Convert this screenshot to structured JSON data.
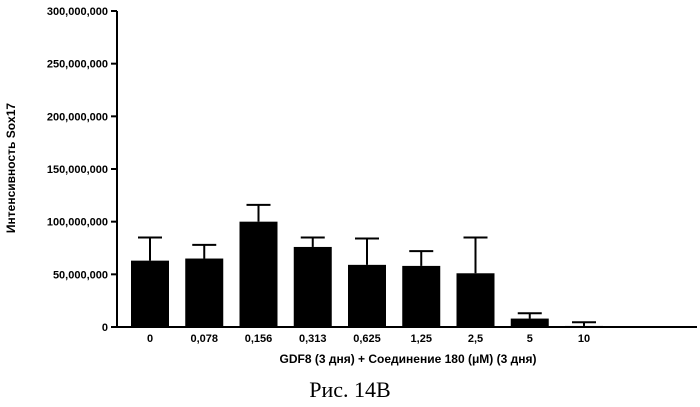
{
  "chart_data": {
    "type": "bar",
    "categories": [
      "0",
      "0,078",
      "0,156",
      "0,313",
      "0,625",
      "1,25",
      "2,5",
      "5",
      "10"
    ],
    "values": [
      63000000,
      65000000,
      100000000,
      76000000,
      59000000,
      58000000,
      51000000,
      8000000,
      1000000
    ],
    "error_upper": [
      85000000,
      78000000,
      116000000,
      85000000,
      84000000,
      72000000,
      85000000,
      13000000,
      4500000
    ],
    "ylim": [
      0,
      300000000
    ],
    "yticks": [
      0,
      50000000,
      100000000,
      150000000,
      200000000,
      250000000,
      300000000
    ],
    "ytick_labels": [
      "0",
      "50,000,000",
      "100,000,000",
      "150,000,000",
      "200,000,000",
      "250,000,000",
      "300,000,000"
    ],
    "xlabel": "GDF8 (3 дня) + Соединение 180 (μM) (3 дня)",
    "ylabel": "Интенсивность Sox17",
    "bar_color": "#000000",
    "grid": false
  },
  "figure_caption": "Рис. 14В"
}
